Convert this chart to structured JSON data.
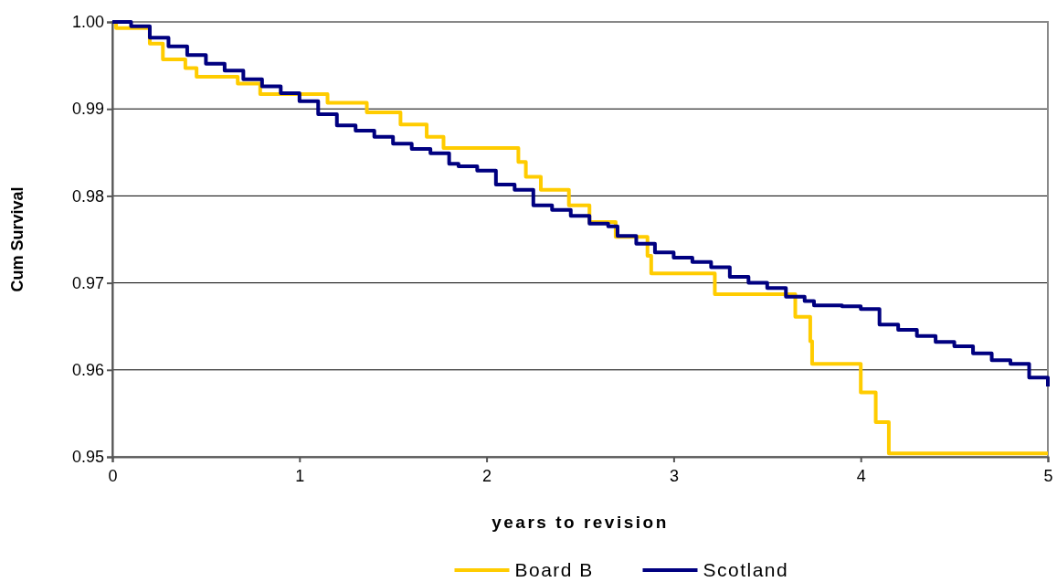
{
  "chart_data": {
    "type": "step",
    "xlabel": "years to revision",
    "ylabel": "Cum Survival",
    "xlim": [
      0,
      5
    ],
    "xticks": [
      0,
      1,
      2,
      3,
      4,
      5
    ],
    "ylim": [
      0.95,
      1.0
    ],
    "yticks": [
      0.95,
      0.96,
      0.97,
      0.98,
      0.99,
      {
        "value": 1.0,
        "label": "1.00"
      }
    ],
    "grid": "y",
    "legend": "bottom",
    "line_style": "solid",
    "marker": "none",
    "series": [
      {
        "name": "Board B",
        "color": "#ffcc00",
        "x": [
          0,
          0.02,
          0.2,
          0.27,
          0.39,
          0.45,
          0.67,
          0.79,
          1.15,
          1.36,
          1.54,
          1.68,
          1.77,
          2.17,
          2.21,
          2.29,
          2.44,
          2.55,
          2.69,
          2.86,
          2.88,
          3.22,
          3.65,
          3.73,
          3.74,
          4.0,
          4.08,
          4.15,
          5.0
        ],
        "values": [
          1.0,
          0.9993,
          0.9975,
          0.9957,
          0.9947,
          0.9937,
          0.9929,
          0.9917,
          0.9907,
          0.9896,
          0.9882,
          0.9868,
          0.9855,
          0.9839,
          0.9822,
          0.9807,
          0.9789,
          0.977,
          0.9753,
          0.9731,
          0.9711,
          0.9687,
          0.9661,
          0.9633,
          0.9607,
          0.9574,
          0.954,
          0.9504,
          0.9504
        ]
      },
      {
        "name": "Scotland",
        "color": "#000080",
        "x": [
          0,
          0.05,
          0.1,
          0.2,
          0.3,
          0.4,
          0.5,
          0.6,
          0.7,
          0.8,
          0.9,
          1.0,
          1.1,
          1.2,
          1.3,
          1.4,
          1.5,
          1.6,
          1.7,
          1.8,
          1.85,
          1.95,
          2.05,
          2.15,
          2.25,
          2.35,
          2.45,
          2.55,
          2.65,
          2.7,
          2.8,
          2.9,
          3.0,
          3.1,
          3.2,
          3.3,
          3.4,
          3.5,
          3.6,
          3.7,
          3.75,
          3.9,
          4.0,
          4.1,
          4.2,
          4.3,
          4.4,
          4.5,
          4.6,
          4.7,
          4.8,
          4.9,
          4.98,
          5.0
        ],
        "values": [
          1.0,
          1.0,
          0.9995,
          0.9982,
          0.9972,
          0.9962,
          0.9952,
          0.9944,
          0.9934,
          0.9926,
          0.9918,
          0.9909,
          0.9894,
          0.9881,
          0.9875,
          0.9868,
          0.986,
          0.9854,
          0.9849,
          0.9837,
          0.9834,
          0.9829,
          0.9813,
          0.9807,
          0.9789,
          0.9784,
          0.9777,
          0.9768,
          0.9765,
          0.9754,
          0.9745,
          0.9735,
          0.9729,
          0.9724,
          0.9718,
          0.9707,
          0.97,
          0.9694,
          0.9684,
          0.9679,
          0.9674,
          0.9673,
          0.967,
          0.9652,
          0.9646,
          0.9639,
          0.9632,
          0.9627,
          0.9619,
          0.9611,
          0.9607,
          0.9591,
          0.9591,
          0.9581
        ]
      }
    ]
  }
}
